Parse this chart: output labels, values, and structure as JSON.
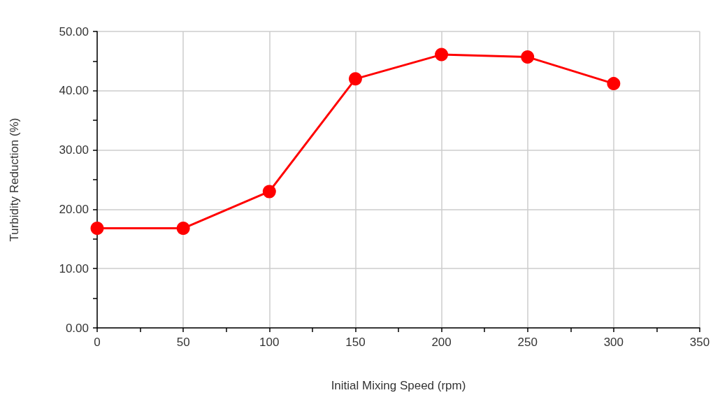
{
  "chart_data": {
    "type": "line",
    "xlabel": "Initial Mixing Speed (rpm)",
    "ylabel": "Turbidity Reduction (%)",
    "x": [
      0,
      50,
      100,
      150,
      200,
      250,
      300
    ],
    "series": [
      {
        "color": "#ff0000",
        "values": [
          16.8,
          16.8,
          23.0,
          42.0,
          46.1,
          45.7,
          41.2
        ]
      }
    ],
    "xlim": [
      0,
      350
    ],
    "xticks": [
      0,
      {
        "value": 25,
        "label": null
      },
      50,
      {
        "value": 75,
        "label": null
      },
      100,
      {
        "value": 125,
        "label": null
      },
      150,
      {
        "value": 175,
        "label": null
      },
      200,
      {
        "value": 225,
        "label": null
      },
      250,
      {
        "value": 275,
        "label": null
      },
      300,
      {
        "value": 325,
        "label": null
      },
      350
    ],
    "ylim": [
      0,
      50
    ],
    "yticks": [
      {
        "value": 0,
        "label": "0.00"
      },
      {
        "value": 5,
        "label": null
      },
      {
        "value": 10,
        "label": "10.00"
      },
      {
        "value": 15,
        "label": null
      },
      {
        "value": 20,
        "label": "20.00"
      },
      {
        "value": 25,
        "label": null
      },
      {
        "value": 30,
        "label": "30.00"
      },
      {
        "value": 35,
        "label": null
      },
      {
        "value": 40,
        "label": "40.00"
      },
      {
        "value": 45,
        "label": null
      },
      {
        "value": 50,
        "label": "50.00"
      }
    ],
    "grid": true,
    "marker": "circle",
    "line_style": "solid"
  }
}
